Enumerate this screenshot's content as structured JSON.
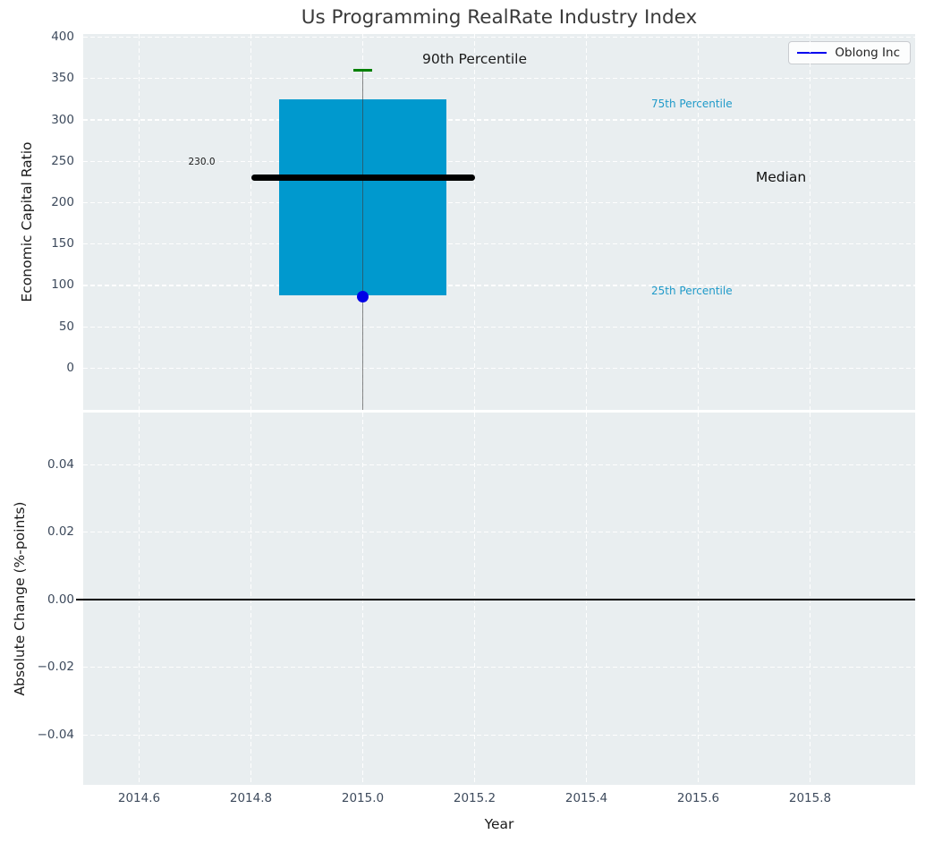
{
  "title": "Us Programming RealRate Industry Index",
  "legend": {
    "label": "Oblong Inc",
    "line_color": "#0000ee"
  },
  "colors": {
    "axes_bg": "#e9eef0",
    "grid": "#ffffff",
    "box_fill": "#0099ce",
    "median_line": "#000000",
    "cap_green": "#008000",
    "whisker": "rgba(60,60,60,0.6)",
    "point_blue": "#0000e6",
    "cyan_text": "#1f9ac9",
    "tick_text": "#3d4a5c",
    "title_text": "#3a3a3a",
    "zero_line": "#000000"
  },
  "chart_data": [
    {
      "type": "box",
      "subplot": "top",
      "title": "Us Programming RealRate Industry Index",
      "ylabel": "Economic Capital Ratio",
      "ylim": [
        -50.3,
        403.8
      ],
      "yticks": [
        0,
        50,
        100,
        150,
        200,
        250,
        300,
        350,
        400
      ],
      "ytick_labels": [
        "0",
        "50",
        "100",
        "150",
        "200",
        "250",
        "300",
        "350",
        "400"
      ],
      "grid": true,
      "legend_position": "upper right",
      "box": {
        "x": 2015.0,
        "p90": 360,
        "p75": 325,
        "median": 230,
        "p25": 88,
        "whisker_bottom_clipped_below_axis": true,
        "box_x_range": [
          2014.85,
          2015.15
        ],
        "median_x_range": [
          2014.8,
          2015.2
        ],
        "median_value_label": "230.0"
      },
      "company_point": {
        "series": "Oblong Inc",
        "x": 2015.0,
        "y": 86
      },
      "annotations": [
        {
          "text": "90th Percentile",
          "x": 2015.2,
          "y": 373,
          "anchor": "center",
          "color": "#1a1a1a",
          "size": 15.5
        },
        {
          "text": "75th Percentile",
          "x": 2015.516,
          "y": 320,
          "anchor": "left",
          "color": "#1f9ac9",
          "size": 12
        },
        {
          "text": "Median",
          "x": 2015.703,
          "y": 231,
          "anchor": "left",
          "color": "#111111",
          "size": 15.5
        },
        {
          "text": "25th Percentile",
          "x": 2015.516,
          "y": 93.5,
          "anchor": "left",
          "color": "#1f9ac9",
          "size": 12
        },
        {
          "text": "230.0",
          "x": 2014.712,
          "y": 249,
          "anchor": "center",
          "color": "#1a1a1a",
          "size": 10.5
        }
      ]
    },
    {
      "type": "line",
      "subplot": "bottom",
      "xlabel": "Year",
      "ylabel": "Absolute Change (%-points)",
      "ylim": [
        -0.0548,
        0.0554
      ],
      "yticks": [
        -0.04,
        -0.02,
        0.0,
        0.02,
        0.04
      ],
      "ytick_labels": [
        "−0.04",
        "−0.02",
        "0.00",
        "0.02",
        "0.04"
      ],
      "xlim": [
        2014.5,
        2015.988
      ],
      "xticks": [
        2014.6,
        2014.8,
        2015.0,
        2015.2,
        2015.4,
        2015.6,
        2015.8
      ],
      "xtick_labels": [
        "2014.6",
        "2014.8",
        "2015.0",
        "2015.2",
        "2015.4",
        "2015.6",
        "2015.8"
      ],
      "zero_line_y": 0.0,
      "grid": true,
      "series": []
    }
  ]
}
